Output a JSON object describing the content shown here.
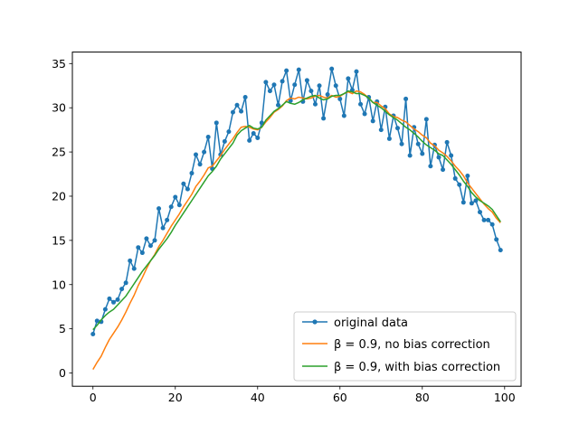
{
  "chart_data": {
    "type": "line",
    "title": "",
    "xlabel": "",
    "ylabel": "",
    "xlim": [
      -5,
      104
    ],
    "ylim": [
      -1.5,
      36.3
    ],
    "xticks": [
      0,
      20,
      40,
      60,
      80,
      100
    ],
    "yticks": [
      0,
      5,
      10,
      15,
      20,
      25,
      30,
      35
    ],
    "grid": false,
    "legend_position": "lower-right",
    "series": [
      {
        "name": "original data",
        "color": "#1f77b4",
        "marker": "circle",
        "x": [
          0,
          1,
          2,
          3,
          4,
          5,
          6,
          7,
          8,
          9,
          10,
          11,
          12,
          13,
          14,
          15,
          16,
          17,
          18,
          19,
          20,
          21,
          22,
          23,
          24,
          25,
          26,
          27,
          28,
          29,
          30,
          31,
          32,
          33,
          34,
          35,
          36,
          37,
          38,
          39,
          40,
          41,
          42,
          43,
          44,
          45,
          46,
          47,
          48,
          49,
          50,
          51,
          52,
          53,
          54,
          55,
          56,
          57,
          58,
          59,
          60,
          61,
          62,
          63,
          64,
          65,
          66,
          67,
          68,
          69,
          70,
          71,
          72,
          73,
          74,
          75,
          76,
          77,
          78,
          79,
          80,
          81,
          82,
          83,
          84,
          85,
          86,
          87,
          88,
          89,
          90,
          91,
          92,
          93,
          94,
          95,
          96,
          97,
          98,
          99
        ],
        "values": [
          4.4,
          5.9,
          5.8,
          7.2,
          8.4,
          8.0,
          8.3,
          9.5,
          10.2,
          12.7,
          11.8,
          14.2,
          13.6,
          15.2,
          14.4,
          15.0,
          18.6,
          16.4,
          17.3,
          18.8,
          19.9,
          19.0,
          21.4,
          20.8,
          22.6,
          24.7,
          23.6,
          25.0,
          26.7,
          23.1,
          28.3,
          24.7,
          26.2,
          27.3,
          29.5,
          30.3,
          29.6,
          31.2,
          26.3,
          27.1,
          26.6,
          28.3,
          32.9,
          31.9,
          32.6,
          30.3,
          33.0,
          34.2,
          30.8,
          32.6,
          34.3,
          30.7,
          33.1,
          31.9,
          30.4,
          32.5,
          28.8,
          31.5,
          34.4,
          32.5,
          31.0,
          29.1,
          33.3,
          32.0,
          34.1,
          30.4,
          29.3,
          31.2,
          28.5,
          30.7,
          27.5,
          30.1,
          26.5,
          29.1,
          27.7,
          25.9,
          31.0,
          24.6,
          27.8,
          25.9,
          24.8,
          28.7,
          23.4,
          25.8,
          24.4,
          23.0,
          26.1,
          24.6,
          22.0,
          21.3,
          19.3,
          22.3,
          19.2,
          19.5,
          18.2,
          17.3,
          17.3,
          16.8,
          15.1,
          13.9
        ]
      },
      {
        "name": "β = 0.9, no bias correction",
        "color": "#ff7f0e",
        "x": [
          0,
          1,
          2,
          3,
          4,
          5,
          6,
          7,
          8,
          9,
          10,
          11,
          12,
          13,
          14,
          15,
          16,
          17,
          18,
          19,
          20,
          21,
          22,
          23,
          24,
          25,
          26,
          27,
          28,
          29,
          30,
          31,
          32,
          33,
          34,
          35,
          36,
          37,
          38,
          39,
          40,
          41,
          42,
          43,
          44,
          45,
          46,
          47,
          48,
          49,
          50,
          51,
          52,
          53,
          54,
          55,
          56,
          57,
          58,
          59,
          60,
          61,
          62,
          63,
          64,
          65,
          66,
          67,
          68,
          69,
          70,
          71,
          72,
          73,
          74,
          75,
          76,
          77,
          78,
          79,
          80,
          81,
          82,
          83,
          84,
          85,
          86,
          87,
          88,
          89,
          90,
          91,
          92,
          93,
          94,
          95,
          96,
          97,
          98,
          99
        ],
        "values": [
          0.4,
          1.2,
          1.9,
          2.9,
          3.8,
          4.5,
          5.2,
          6.0,
          6.9,
          7.9,
          8.8,
          9.9,
          10.8,
          11.8,
          12.7,
          13.4,
          14.3,
          15.0,
          15.8,
          16.6,
          17.3,
          18.0,
          18.8,
          19.5,
          20.2,
          21.1,
          21.7,
          22.4,
          23.2,
          23.4,
          24.0,
          24.6,
          25.3,
          25.9,
          26.5,
          27.2,
          27.8,
          27.9,
          27.8,
          27.6,
          27.5,
          27.8,
          28.4,
          28.9,
          29.5,
          29.8,
          30.2,
          30.8,
          31.1,
          31.0,
          31.2,
          31.1,
          31.0,
          31.1,
          31.3,
          31.4,
          31.2,
          31.1,
          31.4,
          31.2,
          31.3,
          31.6,
          31.8,
          31.6,
          31.9,
          31.8,
          31.5,
          31.1,
          30.6,
          30.6,
          30.2,
          29.9,
          29.3,
          29.0,
          28.9,
          28.6,
          28.4,
          28.0,
          27.6,
          27.3,
          26.9,
          26.6,
          26.0,
          25.7,
          25.2,
          24.9,
          24.5,
          24.0,
          23.4,
          22.9,
          22.3,
          21.5,
          20.9,
          20.3,
          19.7,
          19.1,
          18.6,
          18.2,
          17.5,
          17.0
        ]
      },
      {
        "name": "β = 0.9, with bias correction",
        "color": "#2ca02c",
        "x": [
          0,
          1,
          2,
          3,
          4,
          5,
          6,
          7,
          8,
          9,
          10,
          11,
          12,
          13,
          14,
          15,
          16,
          17,
          18,
          19,
          20,
          21,
          22,
          23,
          24,
          25,
          26,
          27,
          28,
          29,
          30,
          31,
          32,
          33,
          34,
          35,
          36,
          37,
          38,
          39,
          40,
          41,
          42,
          43,
          44,
          45,
          46,
          47,
          48,
          49,
          50,
          51,
          52,
          53,
          54,
          55,
          56,
          57,
          58,
          59,
          60,
          61,
          62,
          63,
          64,
          65,
          66,
          67,
          68,
          69,
          70,
          71,
          72,
          73,
          74,
          75,
          76,
          77,
          78,
          79,
          80,
          81,
          82,
          83,
          84,
          85,
          86,
          87,
          88,
          89,
          90,
          91,
          92,
          93,
          94,
          95,
          96,
          97,
          98,
          99
        ],
        "values": [
          4.9,
          5.4,
          6.0,
          6.5,
          6.9,
          7.2,
          7.7,
          8.2,
          8.7,
          9.4,
          10.1,
          10.8,
          11.5,
          12.1,
          12.7,
          13.3,
          14.0,
          14.6,
          15.2,
          15.9,
          16.7,
          17.4,
          18.1,
          18.8,
          19.5,
          20.2,
          20.9,
          21.6,
          22.3,
          22.8,
          23.4,
          24.2,
          24.8,
          25.4,
          26.0,
          26.9,
          27.4,
          27.7,
          28.0,
          27.7,
          27.6,
          27.8,
          28.6,
          29.1,
          29.6,
          29.9,
          30.3,
          30.7,
          30.5,
          30.4,
          30.6,
          30.9,
          31.1,
          31.3,
          31.4,
          31.1,
          30.9,
          31.0,
          31.3,
          31.4,
          31.4,
          31.6,
          31.9,
          31.8,
          31.6,
          31.6,
          31.4,
          31.1,
          30.6,
          30.3,
          30.0,
          29.6,
          29.2,
          28.9,
          28.6,
          28.2,
          27.8,
          27.5,
          27.1,
          26.7,
          26.2,
          25.8,
          25.5,
          25.2,
          24.8,
          24.6,
          24.1,
          23.6,
          23.0,
          22.4,
          21.7,
          21.1,
          20.4,
          19.9,
          19.5,
          19.2,
          18.9,
          18.5,
          17.8,
          17.1
        ]
      }
    ]
  }
}
